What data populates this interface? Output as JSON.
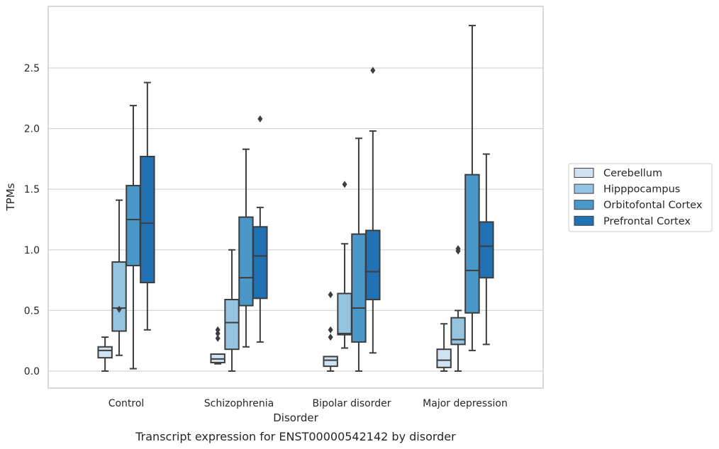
{
  "caption": "Transcript expression for ENST00000542142 by disorder",
  "chart_data": {
    "type": "box",
    "xlabel": "Disorder",
    "ylabel": "TPMs",
    "ylim": [
      -0.13,
      2.97
    ],
    "yticks": [
      0.0,
      0.5,
      1.0,
      1.5,
      2.0,
      2.5
    ],
    "ytick_labels": [
      "0.0",
      "0.5",
      "1.0",
      "1.5",
      "2.0",
      "2.5"
    ],
    "grid": "horizontal",
    "legend_position": "right",
    "categories": [
      "Control",
      "Schizophrenia",
      "Bipolar disorder",
      "Major depression"
    ],
    "series": [
      {
        "name": "Cerebellum",
        "color": "#d0e1f2",
        "boxes": [
          {
            "whisker_low": 0.0,
            "q1": 0.11,
            "median": 0.17,
            "q3": 0.2,
            "whisker_high": 0.28,
            "outliers": []
          },
          {
            "whisker_low": 0.06,
            "q1": 0.07,
            "median": 0.1,
            "q3": 0.14,
            "whisker_high": 0.14,
            "outliers": [
              0.27,
              0.31,
              0.34
            ]
          },
          {
            "whisker_low": 0.0,
            "q1": 0.04,
            "median": 0.09,
            "q3": 0.12,
            "whisker_high": 0.12,
            "outliers": [
              0.28,
              0.34,
              0.63
            ]
          },
          {
            "whisker_low": 0.0,
            "q1": 0.03,
            "median": 0.09,
            "q3": 0.18,
            "whisker_high": 0.39,
            "outliers": []
          }
        ]
      },
      {
        "name": "Hipppocampus",
        "color": "#94c4df",
        "boxes": [
          {
            "whisker_low": 0.13,
            "q1": 0.33,
            "median": 0.52,
            "q3": 0.9,
            "whisker_high": 1.41,
            "outliers": [
              0.51
            ]
          },
          {
            "whisker_low": 0.0,
            "q1": 0.18,
            "median": 0.4,
            "q3": 0.59,
            "whisker_high": 1.0,
            "outliers": []
          },
          {
            "whisker_low": 0.19,
            "q1": 0.3,
            "median": 0.31,
            "q3": 0.64,
            "whisker_high": 1.05,
            "outliers": [
              1.54
            ]
          },
          {
            "whisker_low": 0.0,
            "q1": 0.22,
            "median": 0.26,
            "q3": 0.44,
            "whisker_high": 0.5,
            "outliers": [
              0.99,
              1.01
            ]
          }
        ]
      },
      {
        "name": "Orbitofontal Cortex",
        "color": "#4a98c9",
        "boxes": [
          {
            "whisker_low": 0.02,
            "q1": 0.87,
            "median": 1.25,
            "q3": 1.53,
            "whisker_high": 2.19,
            "outliers": []
          },
          {
            "whisker_low": 0.2,
            "q1": 0.54,
            "median": 0.77,
            "q3": 1.27,
            "whisker_high": 1.83,
            "outliers": []
          },
          {
            "whisker_low": 0.0,
            "q1": 0.24,
            "median": 0.52,
            "q3": 1.13,
            "whisker_high": 1.92,
            "outliers": []
          },
          {
            "whisker_low": 0.17,
            "q1": 0.48,
            "median": 0.83,
            "q3": 1.62,
            "whisker_high": 2.85,
            "outliers": []
          }
        ]
      },
      {
        "name": "Prefrontal Cortex",
        "color": "#2171b5",
        "boxes": [
          {
            "whisker_low": 0.34,
            "q1": 0.73,
            "median": 1.22,
            "q3": 1.77,
            "whisker_high": 2.38,
            "outliers": []
          },
          {
            "whisker_low": 0.24,
            "q1": 0.6,
            "median": 0.95,
            "q3": 1.19,
            "whisker_high": 1.35,
            "outliers": [
              2.08
            ]
          },
          {
            "whisker_low": 0.15,
            "q1": 0.59,
            "median": 0.82,
            "q3": 1.16,
            "whisker_high": 1.98,
            "outliers": [
              2.48
            ]
          },
          {
            "whisker_low": 0.22,
            "q1": 0.77,
            "median": 1.03,
            "q3": 1.23,
            "whisker_high": 1.79,
            "outliers": []
          }
        ]
      }
    ]
  }
}
